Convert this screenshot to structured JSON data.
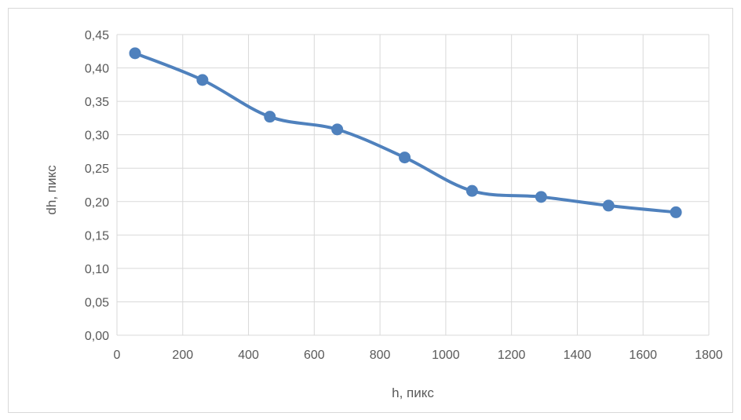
{
  "chart_data": {
    "type": "line",
    "xlabel": "h, пикс",
    "ylabel": "dh, пикс",
    "xlim": [
      0,
      1800
    ],
    "ylim": [
      0,
      0.45
    ],
    "x_ticks": [
      "0",
      "200",
      "400",
      "600",
      "800",
      "1000",
      "1200",
      "1400",
      "1600",
      "1800"
    ],
    "y_ticks": [
      "0,00",
      "0,05",
      "0,10",
      "0,15",
      "0,20",
      "0,25",
      "0,30",
      "0,35",
      "0,40",
      "0,45"
    ],
    "grid": true,
    "smooth": true,
    "markers": true,
    "series": [
      {
        "color": "#4f81bd",
        "x": [
          55,
          260,
          465,
          670,
          875,
          1080,
          1290,
          1495,
          1700
        ],
        "y": [
          0.422,
          0.382,
          0.327,
          0.308,
          0.266,
          0.216,
          0.207,
          0.194,
          0.184
        ]
      }
    ]
  }
}
